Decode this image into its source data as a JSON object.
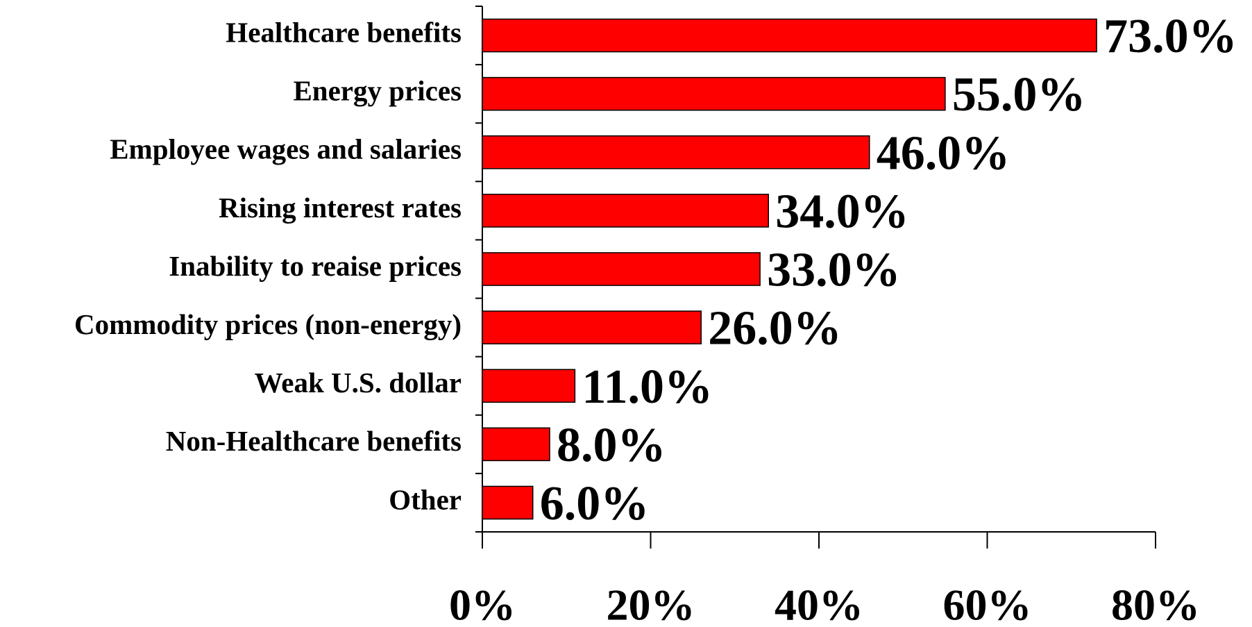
{
  "chart_data": {
    "type": "bar",
    "orientation": "horizontal",
    "categories": [
      "Healthcare benefits",
      "Energy prices",
      "Employee wages and salaries",
      "Rising interest rates",
      "Inability to reaise prices",
      "Commodity prices (non-energy)",
      "Weak U.S. dollar",
      "Non-Healthcare benefits",
      "Other"
    ],
    "values": [
      73,
      55,
      46,
      34,
      33,
      26,
      11,
      8,
      6
    ],
    "value_labels": [
      "73.0%",
      "55.0%",
      "46.0%",
      "34.0%",
      "33.0%",
      "26.0%",
      "11.0%",
      "8.0%",
      "6.0%"
    ],
    "color": "#ff0000",
    "xlim": [
      0,
      80
    ],
    "xticks": [
      {
        "value": 0,
        "label": "0%"
      },
      {
        "value": 20,
        "label": "20%"
      },
      {
        "value": 40,
        "label": "40%"
      },
      {
        "value": 60,
        "label": "60%"
      },
      {
        "value": 80,
        "label": "80%"
      }
    ],
    "grid": false
  }
}
